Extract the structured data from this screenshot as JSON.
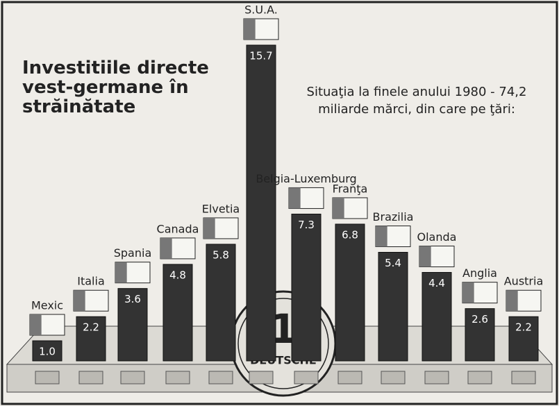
{
  "chart_data": {
    "type": "bar",
    "title": "Investitiile directe vest-germane în străinătate",
    "subtitle": "Situaţia la finele anului 1980 - 74,2 miliarde mărci, din care pe ţări:",
    "categories": [
      "Mexic",
      "Italia",
      "Spania",
      "Canada",
      "Elvetia",
      "S.U.A.",
      "Belgia-Luxemburg",
      "Franţa",
      "Brazilia",
      "Olanda",
      "Anglia",
      "Austria"
    ],
    "values": [
      1.0,
      2.2,
      3.6,
      4.8,
      5.8,
      15.7,
      7.3,
      6.8,
      5.4,
      4.4,
      2.6,
      2.2
    ],
    "value_labels": [
      "1.0",
      "2.2",
      "3.6",
      "4.8",
      "5.8",
      "15.7",
      "7.3",
      "6.8",
      "5.4",
      "4.4",
      "2.6",
      "2.2"
    ],
    "color": "#333333",
    "annotations": [
      "1",
      "DEUTSCHE"
    ]
  }
}
